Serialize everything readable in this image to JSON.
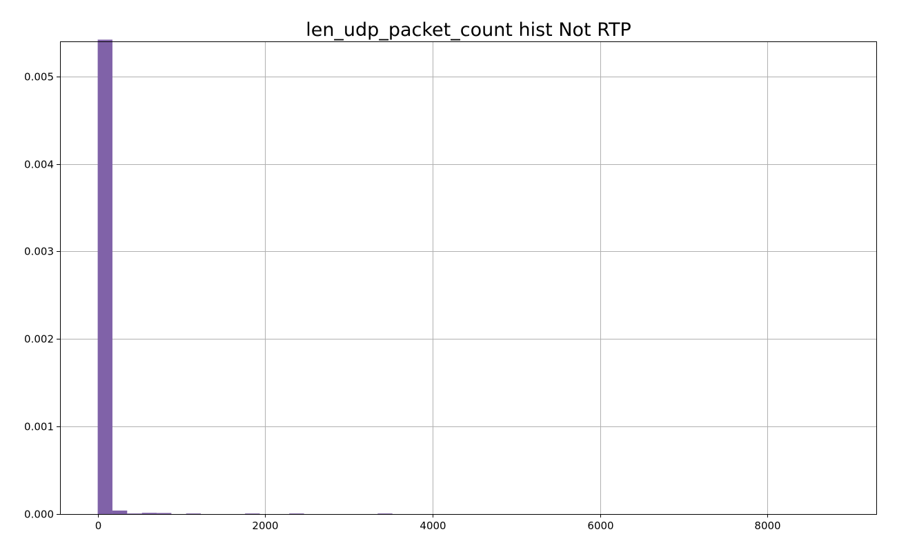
{
  "chart_data": {
    "type": "bar",
    "title": "len_udp_packet_count hist Not RTP",
    "xlabel": "",
    "ylabel": "",
    "grid": true,
    "legend": "none",
    "xlim": [
      -450,
      9300
    ],
    "ylim": [
      0,
      0.0054
    ],
    "x_ticks": [
      0,
      2000,
      4000,
      6000,
      8000
    ],
    "x_tick_labels": [
      "0",
      "2000",
      "4000",
      "6000",
      "8000"
    ],
    "y_ticks": [
      0,
      0.001,
      0.002,
      0.003,
      0.004,
      0.005
    ],
    "y_tick_labels": [
      "0.000",
      "0.001",
      "0.002",
      "0.003",
      "0.004",
      "0.005"
    ],
    "bin_width": 176,
    "bins": [
      {
        "x0": 0,
        "x1": 176,
        "value": 0.00542
      },
      {
        "x0": 176,
        "x1": 352,
        "value": 4e-05
      },
      {
        "x0": 352,
        "x1": 528,
        "value": 6e-06
      },
      {
        "x0": 528,
        "x1": 704,
        "value": 1.4e-05
      },
      {
        "x0": 704,
        "x1": 880,
        "value": 1.2e-05
      },
      {
        "x0": 1056,
        "x1": 1232,
        "value": 6e-06
      },
      {
        "x0": 1760,
        "x1": 1936,
        "value": 4e-06
      },
      {
        "x0": 2288,
        "x1": 2464,
        "value": 5e-06
      },
      {
        "x0": 3344,
        "x1": 3520,
        "value": 4e-06
      }
    ],
    "colors": {
      "bar": "#8062a8"
    }
  }
}
